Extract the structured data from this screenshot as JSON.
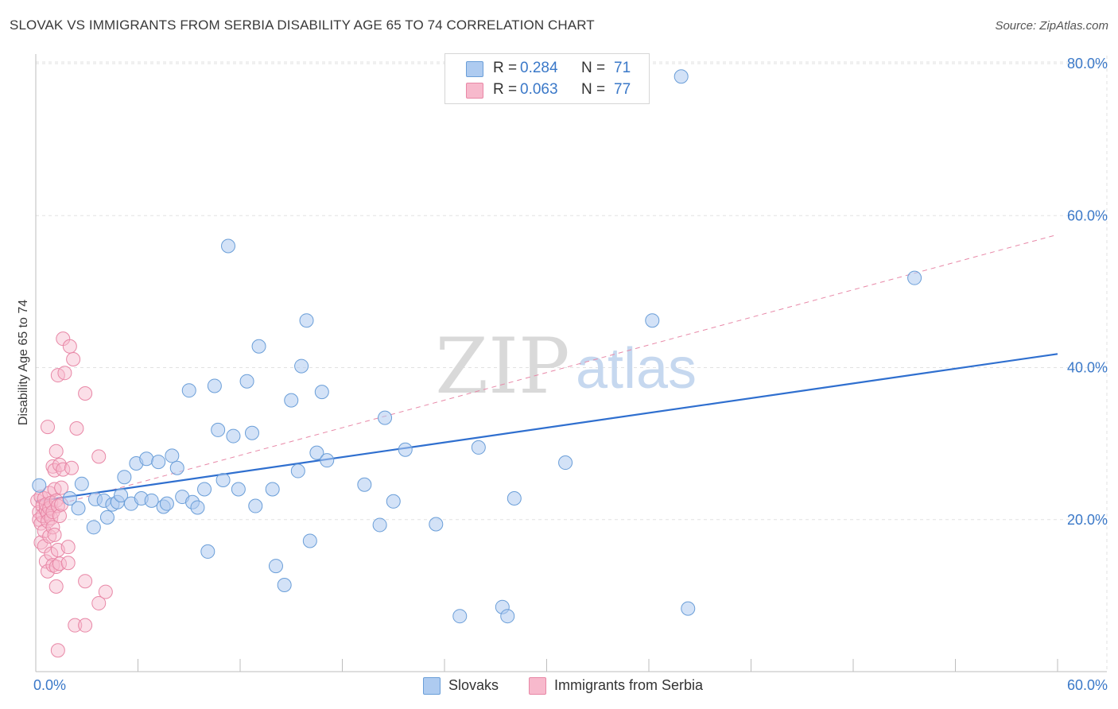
{
  "title": "SLOVAK VS IMMIGRANTS FROM SERBIA DISABILITY AGE 65 TO 74 CORRELATION CHART",
  "source": "Source: ZipAtlas.com",
  "watermark": {
    "zip": "ZIP",
    "atlas": "atlas"
  },
  "legend_top": [
    {
      "r_label": "R = ",
      "r_value": "0.284",
      "n_label": "N = ",
      "n_value": "71"
    },
    {
      "r_label": "R = ",
      "r_value": "0.063",
      "n_label": "N = ",
      "n_value": "77"
    }
  ],
  "legend_bottom": [
    "Slovaks",
    "Immigrants from Serbia"
  ],
  "colors": {
    "blue_fill": "#aecbf0",
    "blue_stroke": "#6a9ed8",
    "blue_line": "#2f6fcf",
    "pink_fill": "#f7b9cc",
    "pink_stroke": "#e887a6",
    "pink_line": "#e889a8",
    "tick_text": "#3a78c8",
    "grid": "#e2e2e2"
  },
  "chart_data": {
    "type": "scatter",
    "title": "SLOVAK VS IMMIGRANTS FROM SERBIA DISABILITY AGE 65 TO 74 CORRELATION CHART",
    "xlabel": "",
    "ylabel": "Disability Age 65 to 74",
    "xlim": [
      0,
      60
    ],
    "ylim": [
      0,
      80
    ],
    "x_tick_labels": [
      "0.0%",
      "60.0%"
    ],
    "y_ticks": [
      20,
      40,
      60,
      80
    ],
    "y_tick_labels": [
      "20.0%",
      "40.0%",
      "60.0%",
      "80.0%"
    ],
    "grid": true,
    "series": [
      {
        "name": "Slovaks",
        "r": 0.284,
        "n": 71,
        "trend": {
          "x": [
            0,
            60
          ],
          "y": [
            22.4,
            41.8
          ]
        },
        "points": [
          [
            0.2,
            24.5
          ],
          [
            2.0,
            22.8
          ],
          [
            2.5,
            21.5
          ],
          [
            2.7,
            24.7
          ],
          [
            3.5,
            22.7
          ],
          [
            3.4,
            19.0
          ],
          [
            4.0,
            22.5
          ],
          [
            4.2,
            20.3
          ],
          [
            4.5,
            22.0
          ],
          [
            4.8,
            22.3
          ],
          [
            5.0,
            23.2
          ],
          [
            5.2,
            25.6
          ],
          [
            5.6,
            22.1
          ],
          [
            5.9,
            27.4
          ],
          [
            6.2,
            22.8
          ],
          [
            6.5,
            28.0
          ],
          [
            6.8,
            22.5
          ],
          [
            7.2,
            27.6
          ],
          [
            7.5,
            21.7
          ],
          [
            7.7,
            22.1
          ],
          [
            8.0,
            28.4
          ],
          [
            8.3,
            26.8
          ],
          [
            8.6,
            23.0
          ],
          [
            9.0,
            37.0
          ],
          [
            9.2,
            22.3
          ],
          [
            9.5,
            21.6
          ],
          [
            9.9,
            24.0
          ],
          [
            10.1,
            15.8
          ],
          [
            10.5,
            37.6
          ],
          [
            10.7,
            31.8
          ],
          [
            11.0,
            25.2
          ],
          [
            11.3,
            56.0
          ],
          [
            11.6,
            31.0
          ],
          [
            11.9,
            24.0
          ],
          [
            12.4,
            38.2
          ],
          [
            12.7,
            31.4
          ],
          [
            12.9,
            21.8
          ],
          [
            13.1,
            42.8
          ],
          [
            13.9,
            24.0
          ],
          [
            14.1,
            13.9
          ],
          [
            14.6,
            11.4
          ],
          [
            15.0,
            35.7
          ],
          [
            15.4,
            26.4
          ],
          [
            15.6,
            40.2
          ],
          [
            15.9,
            46.2
          ],
          [
            16.1,
            17.2
          ],
          [
            16.5,
            28.8
          ],
          [
            16.8,
            36.8
          ],
          [
            17.1,
            27.8
          ],
          [
            19.3,
            24.6
          ],
          [
            20.2,
            19.3
          ],
          [
            20.5,
            33.4
          ],
          [
            21.0,
            22.4
          ],
          [
            21.7,
            29.2
          ],
          [
            23.5,
            19.4
          ],
          [
            24.9,
            7.3
          ],
          [
            26.0,
            29.5
          ],
          [
            27.4,
            8.5
          ],
          [
            27.7,
            7.3
          ],
          [
            28.1,
            22.8
          ],
          [
            31.1,
            27.5
          ],
          [
            36.2,
            46.2
          ],
          [
            37.9,
            78.3
          ],
          [
            38.3,
            8.3
          ],
          [
            51.6,
            51.8
          ]
        ]
      },
      {
        "name": "Immigrants from Serbia",
        "r": 0.063,
        "n": 77,
        "trend": {
          "x": [
            0,
            60
          ],
          "y": [
            21.2,
            57.5
          ]
        },
        "points": [
          [
            0.1,
            22.5
          ],
          [
            0.2,
            21.0
          ],
          [
            0.2,
            20.0
          ],
          [
            0.3,
            23.0
          ],
          [
            0.3,
            19.5
          ],
          [
            0.3,
            17.0
          ],
          [
            0.4,
            21.8
          ],
          [
            0.4,
            20.5
          ],
          [
            0.5,
            22.8
          ],
          [
            0.5,
            18.5
          ],
          [
            0.5,
            16.5
          ],
          [
            0.6,
            21.2
          ],
          [
            0.6,
            22.0
          ],
          [
            0.6,
            14.5
          ],
          [
            0.7,
            20.8
          ],
          [
            0.7,
            19.8
          ],
          [
            0.7,
            13.2
          ],
          [
            0.8,
            23.5
          ],
          [
            0.8,
            21.5
          ],
          [
            0.8,
            17.8
          ],
          [
            0.9,
            22.2
          ],
          [
            0.9,
            20.2
          ],
          [
            0.9,
            15.5
          ],
          [
            1.0,
            27.0
          ],
          [
            1.0,
            21.0
          ],
          [
            1.0,
            19.0
          ],
          [
            1.0,
            14.0
          ],
          [
            1.1,
            26.5
          ],
          [
            1.1,
            24.0
          ],
          [
            1.1,
            18.0
          ],
          [
            1.2,
            29.0
          ],
          [
            1.2,
            22.5
          ],
          [
            1.2,
            13.8
          ],
          [
            1.2,
            11.2
          ],
          [
            1.3,
            39.0
          ],
          [
            1.3,
            21.8
          ],
          [
            1.3,
            16.0
          ],
          [
            1.4,
            27.2
          ],
          [
            1.4,
            20.5
          ],
          [
            1.4,
            14.2
          ],
          [
            1.5,
            24.2
          ],
          [
            1.5,
            22.0
          ],
          [
            1.6,
            43.8
          ],
          [
            1.6,
            26.6
          ],
          [
            0.7,
            32.2
          ],
          [
            1.7,
            39.3
          ],
          [
            1.9,
            16.4
          ],
          [
            1.9,
            14.3
          ],
          [
            2.0,
            42.8
          ],
          [
            2.1,
            26.8
          ],
          [
            2.2,
            41.1
          ],
          [
            2.3,
            6.1
          ],
          [
            2.4,
            32.0
          ],
          [
            2.9,
            36.6
          ],
          [
            2.9,
            6.1
          ],
          [
            2.9,
            11.9
          ],
          [
            3.7,
            28.3
          ],
          [
            3.7,
            9.0
          ],
          [
            4.1,
            10.5
          ],
          [
            1.3,
            2.8
          ]
        ]
      }
    ]
  }
}
